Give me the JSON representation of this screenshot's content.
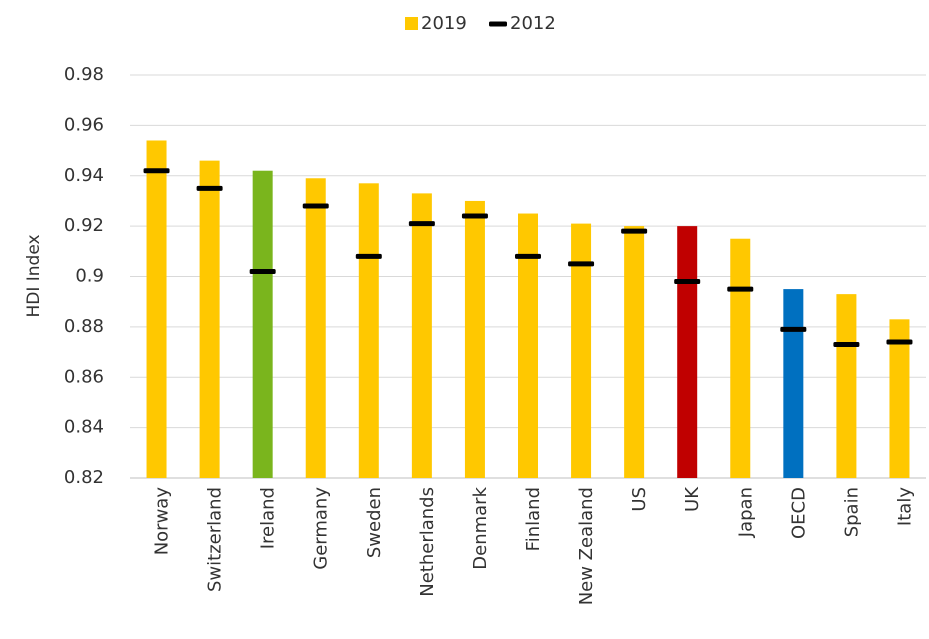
{
  "chart_data": {
    "type": "bar",
    "title": "",
    "xlabel": "",
    "ylabel": "HDI Index",
    "ylim": [
      0.82,
      0.98
    ],
    "yticks": [
      0.82,
      0.84,
      0.86,
      0.88,
      0.9,
      0.92,
      0.94,
      0.96,
      0.98
    ],
    "ytick_labels": [
      "0.82",
      "0.84",
      "0.86",
      "0.88",
      "0.9",
      "0.92",
      "0.94",
      "0.96",
      "0.98"
    ],
    "grid": true,
    "legend_position": "top-center",
    "categories": [
      "Norway",
      "Switzerland",
      "Ireland",
      "Germany",
      "Sweden",
      "Netherlands",
      "Denmark",
      "Finland",
      "New Zealand",
      "US",
      "UK",
      "Japan",
      "OECD",
      "Spain",
      "Italy"
    ],
    "series": [
      {
        "name": "2019",
        "kind": "bar",
        "color": "#FFC800",
        "values": [
          0.954,
          0.946,
          0.942,
          0.939,
          0.937,
          0.933,
          0.93,
          0.925,
          0.921,
          0.92,
          0.92,
          0.915,
          0.895,
          0.893,
          0.883
        ],
        "bar_colors": [
          "#FFC800",
          "#FFC800",
          "#7AB51D",
          "#FFC800",
          "#FFC800",
          "#FFC800",
          "#FFC800",
          "#FFC800",
          "#FFC800",
          "#FFC800",
          "#C00000",
          "#FFC800",
          "#0070C0",
          "#FFC800",
          "#FFC800"
        ]
      },
      {
        "name": "2012",
        "kind": "marker",
        "color": "#000000",
        "values": [
          0.942,
          0.935,
          0.902,
          0.928,
          0.908,
          0.921,
          0.924,
          0.908,
          0.905,
          0.918,
          0.898,
          0.895,
          0.879,
          0.873,
          0.874
        ]
      }
    ]
  }
}
